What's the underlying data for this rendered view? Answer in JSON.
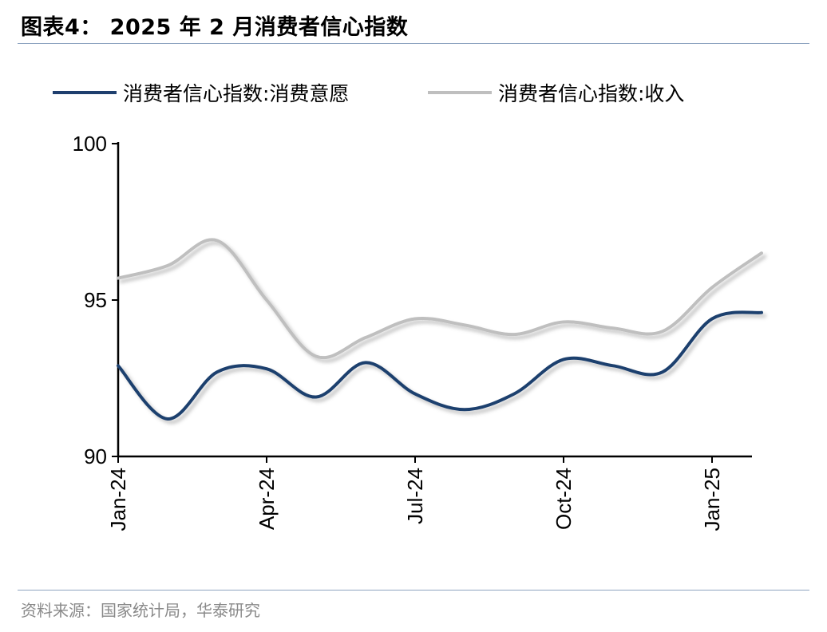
{
  "title": "图表4： 2025 年 2 月消费者信心指数",
  "source": "资料来源：国家统计局，华泰研究",
  "chart_data": {
    "type": "line",
    "title": "图表4： 2025 年 2 月消费者信心指数",
    "x": [
      "2024-01",
      "2024-02",
      "2024-03",
      "2024-04",
      "2024-05",
      "2024-06",
      "2024-07",
      "2024-08",
      "2024-09",
      "2024-10",
      "2024-11",
      "2024-12",
      "2025-01",
      "2025-02"
    ],
    "x_tick_labels": [
      "Jan-24",
      "Apr-24",
      "Jul-24",
      "Oct-24",
      "Jan-25"
    ],
    "x_tick_positions": [
      "2024-01",
      "2024-04",
      "2024-07",
      "2024-10",
      "2025-01"
    ],
    "ylim": [
      90,
      100
    ],
    "y_ticks": [
      "90",
      "95",
      "100"
    ],
    "grid": false,
    "legend_position": "top",
    "series": [
      {
        "name": "消费者信心指数:消费意愿",
        "color": "#1f3f6e",
        "values": [
          92.9,
          91.2,
          92.7,
          92.8,
          91.9,
          93.0,
          92.0,
          91.5,
          92.0,
          93.1,
          92.9,
          92.7,
          94.4,
          94.6
        ]
      },
      {
        "name": "消费者信心指数:收入",
        "color": "#bfbfbf",
        "values": [
          95.7,
          96.1,
          96.9,
          95.0,
          93.2,
          93.8,
          94.4,
          94.2,
          93.9,
          94.3,
          94.1,
          94.0,
          95.4,
          96.5
        ]
      }
    ]
  }
}
